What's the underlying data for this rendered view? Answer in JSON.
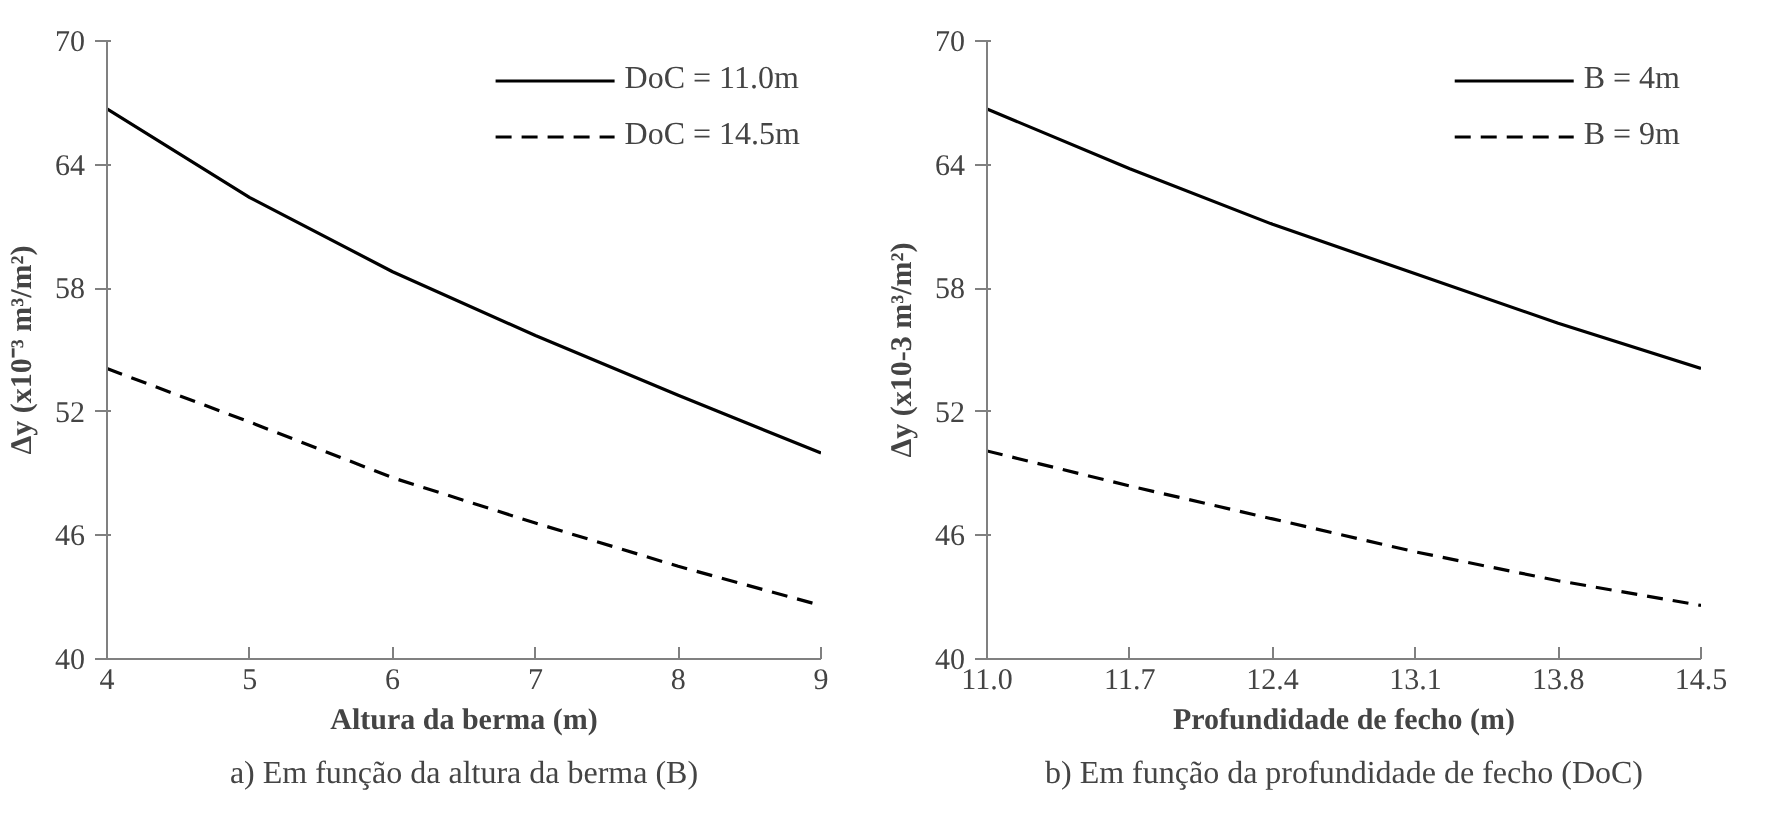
{
  "chart_data": [
    {
      "type": "line",
      "xlabel": "Altura da berma (m)",
      "ylabel": "Δy (x10⁻³ m³/m²)",
      "x": [
        4,
        5,
        6,
        7,
        8,
        9
      ],
      "series": [
        {
          "name": "DoC = 11.0m",
          "color": "#000000",
          "line_style": "solid",
          "values": [
            66.7,
            62.4,
            58.8,
            55.7,
            52.8,
            50.0
          ]
        },
        {
          "name": "DoC = 14.5m",
          "color": "#000000",
          "line_style": "dashed",
          "values": [
            54.1,
            51.5,
            48.8,
            46.6,
            44.5,
            42.6
          ]
        }
      ],
      "xlim": [
        4,
        9
      ],
      "xticks": [
        4,
        5,
        6,
        7,
        8,
        9
      ],
      "ylim": [
        40,
        70
      ],
      "yticks": [
        40,
        46,
        52,
        58,
        64,
        70
      ],
      "grid": false,
      "legend": "top right",
      "marker": "none",
      "annotations": [
        "a) Em função da altura da berma (B)"
      ]
    },
    {
      "type": "line",
      "xlabel": "Profundidade de fecho (m)",
      "ylabel": "Δy (x10-3 m³/m²)",
      "x": [
        11.0,
        11.7,
        12.4,
        13.1,
        13.8,
        14.5
      ],
      "series": [
        {
          "name": "B = 4m",
          "color": "#000000",
          "line_style": "solid",
          "values": [
            66.7,
            63.8,
            61.1,
            58.7,
            56.3,
            54.1
          ]
        },
        {
          "name": "B = 9m",
          "color": "#000000",
          "line_style": "dashed",
          "values": [
            50.1,
            48.4,
            46.8,
            45.2,
            43.8,
            42.6
          ]
        }
      ],
      "xlim": [
        11.0,
        14.5
      ],
      "xticks": [
        {
          "value": 11.0,
          "label": "11.0"
        },
        11.7,
        12.4,
        13.1,
        13.8,
        14.5
      ],
      "ylim": [
        40,
        70
      ],
      "yticks": [
        40,
        46,
        52,
        58,
        64,
        70
      ],
      "grid": false,
      "legend": "top right",
      "marker": "none",
      "annotations": [
        "b) Em função da profundidade de fecho (DoC)"
      ]
    }
  ]
}
